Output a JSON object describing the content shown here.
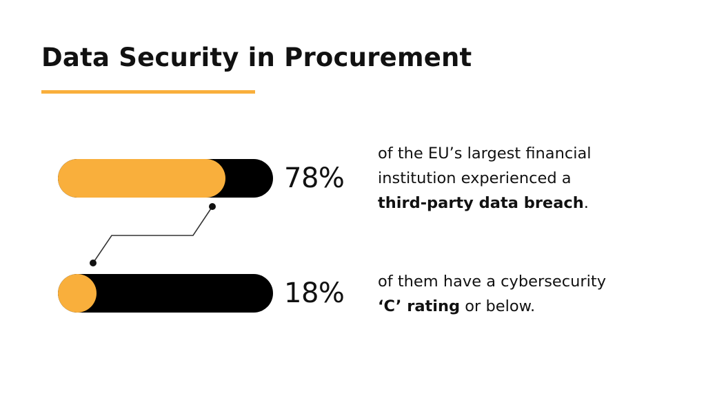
{
  "title": "Data Security in Procurement",
  "colors": {
    "accent": "#F9AF3C",
    "track": "#000000",
    "text": "#111111"
  },
  "chart_data": {
    "type": "bar",
    "orientation": "horizontal",
    "unit": "%",
    "items": [
      {
        "value": 78,
        "label": "78%",
        "description": {
          "line1": "of the EU’s largest financial",
          "line2": "institution experienced a",
          "bold": "third-party data breach",
          "tail": "."
        }
      },
      {
        "value": 18,
        "label": "18%",
        "description": {
          "line1": "of them have a cybersecurity",
          "bold": "‘C’ rating",
          "tail": " or below."
        }
      }
    ]
  }
}
